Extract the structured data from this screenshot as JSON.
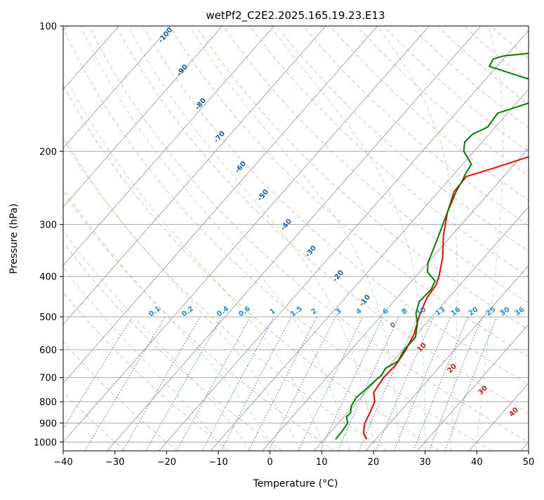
{
  "chart_data": {
    "type": "line",
    "diagram": "skew-T log-P",
    "title": "wetPf2_C2E2.2025.165.19.23.E13",
    "xlabel": "Temperature (°C)",
    "ylabel": "Pressure (hPa)",
    "xlim": [
      -40,
      50
    ],
    "ylim": [
      1050,
      100
    ],
    "y_scale": "log",
    "x_ticks": [
      -40,
      -30,
      -20,
      -10,
      0,
      10,
      20,
      30,
      40,
      50
    ],
    "y_ticks": [
      100,
      200,
      300,
      400,
      500,
      600,
      700,
      800,
      900,
      1000
    ],
    "grid": true,
    "series": [
      {
        "color": "#ff0000",
        "points": [
          {
            "p": 985,
            "x": 18.2
          },
          {
            "p": 950,
            "x": 16.5
          },
          {
            "p": 900,
            "x": 15.1
          },
          {
            "p": 860,
            "x": 14.5
          },
          {
            "p": 800,
            "x": 13.4
          },
          {
            "p": 760,
            "x": 11.6
          },
          {
            "p": 700,
            "x": 11.0
          },
          {
            "p": 650,
            "x": 11.2
          },
          {
            "p": 600,
            "x": 10.6
          },
          {
            "p": 550,
            "x": 9.5
          },
          {
            "p": 500,
            "x": 7.5
          },
          {
            "p": 450,
            "x": 5.8
          },
          {
            "p": 420,
            "x": 5.4
          },
          {
            "p": 400,
            "x": 4.5
          },
          {
            "p": 360,
            "x": 2.0
          },
          {
            "p": 320,
            "x": -1.5
          },
          {
            "p": 280,
            "x": -4.8
          },
          {
            "p": 250,
            "x": -7.0
          },
          {
            "p": 230,
            "x": -7.2
          },
          {
            "p": 220,
            "x": -3.5
          },
          {
            "p": 205,
            "x": 2.0
          },
          {
            "p": 190,
            "x": 6.5
          },
          {
            "p": 170,
            "x": 11.8
          },
          {
            "p": 150,
            "x": 15.8
          },
          {
            "p": 130,
            "x": 20.5
          },
          {
            "p": 115,
            "x": 23.2
          },
          {
            "p": 105,
            "x": 24.8
          },
          {
            "p": 100,
            "x": 25.5
          }
        ]
      },
      {
        "color": "#008000",
        "points": [
          {
            "p": 985,
            "x": 12.2
          },
          {
            "p": 940,
            "x": 12.1
          },
          {
            "p": 900,
            "x": 11.8
          },
          {
            "p": 870,
            "x": 10.5
          },
          {
            "p": 850,
            "x": 10.6
          },
          {
            "p": 820,
            "x": 9.6
          },
          {
            "p": 780,
            "x": 9.1
          },
          {
            "p": 745,
            "x": 9.6
          },
          {
            "p": 720,
            "x": 9.8
          },
          {
            "p": 690,
            "x": 10.2
          },
          {
            "p": 665,
            "x": 9.8
          },
          {
            "p": 640,
            "x": 11.0
          },
          {
            "p": 600,
            "x": 10.3
          },
          {
            "p": 560,
            "x": 10.3
          },
          {
            "p": 520,
            "x": 8.4
          },
          {
            "p": 490,
            "x": 6.3
          },
          {
            "p": 460,
            "x": 5.0
          },
          {
            "p": 430,
            "x": 5.2
          },
          {
            "p": 410,
            "x": 4.5
          },
          {
            "p": 390,
            "x": 1.5
          },
          {
            "p": 370,
            "x": 0.0
          },
          {
            "p": 340,
            "x": -1.4
          },
          {
            "p": 310,
            "x": -3.0
          },
          {
            "p": 280,
            "x": -4.8
          },
          {
            "p": 250,
            "x": -6.6
          },
          {
            "p": 235,
            "x": -7.3
          },
          {
            "p": 225,
            "x": -7.9
          },
          {
            "p": 215,
            "x": -8.3
          },
          {
            "p": 200,
            "x": -12.0
          },
          {
            "p": 190,
            "x": -13.4
          },
          {
            "p": 182,
            "x": -13.2
          },
          {
            "p": 175,
            "x": -11.5
          },
          {
            "p": 162,
            "x": -11.9
          },
          {
            "p": 150,
            "x": -6.0
          },
          {
            "p": 145,
            "x": -4.5
          },
          {
            "p": 140,
            "x": -5.3
          },
          {
            "p": 132,
            "x": -14.0
          },
          {
            "p": 125,
            "x": -21.5
          },
          {
            "p": 120,
            "x": -22.0
          },
          {
            "p": 118,
            "x": -20.5
          },
          {
            "p": 115,
            "x": -12.5
          },
          {
            "p": 110,
            "x": -5.2
          },
          {
            "p": 105,
            "x": -1.6
          },
          {
            "p": 100,
            "x": 0.3
          }
        ]
      }
    ],
    "dry_adiabat_labels": [
      "-100",
      "-90",
      "-80",
      "-70",
      "-60",
      "-50",
      "-40",
      "-30",
      "-20",
      "-10"
    ],
    "mixing_ratio_labels": [
      "0.1",
      "0.2",
      "0.4",
      "0.6",
      "1",
      "1.5",
      "2",
      "3",
      "4",
      "6",
      "8",
      "10",
      "13",
      "16",
      "20",
      "25",
      "30",
      "36"
    ],
    "moist_adiabat_labels": [
      "0",
      "10",
      "20",
      "30",
      "40"
    ],
    "colors": {
      "dry_adiabat": "#f08060",
      "moist_adiabat": "#6fbf6f",
      "mixing_ratio": "#1f77e0",
      "isotherm": "#888888",
      "isobar": "#aaaaaa",
      "dry_adiabat_label": "#1f5fa0",
      "mixing_ratio_label": "#1f8fe8",
      "moist_label": "#cc2222",
      "moist_zero_label": "#808080"
    }
  }
}
